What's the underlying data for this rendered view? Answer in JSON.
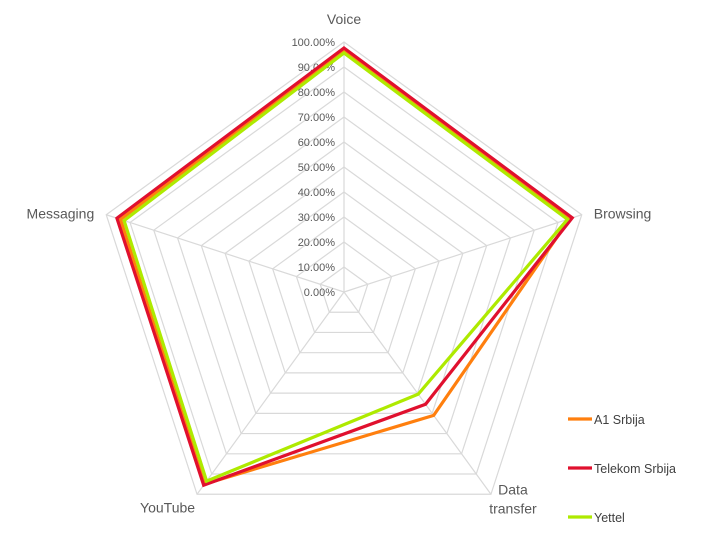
{
  "chart_data": {
    "type": "radar",
    "categories": [
      "Voice",
      "Browsing",
      "Data transfer",
      "YouTube",
      "Messaging"
    ],
    "category_label_lines": [
      [
        "Voice"
      ],
      [
        "Browsing"
      ],
      [
        "Data",
        "transfer"
      ],
      [
        "YouTube"
      ],
      [
        "Messaging"
      ]
    ],
    "rlim": [
      0,
      1
    ],
    "tick_values": [
      0,
      0.1,
      0.2,
      0.3,
      0.4,
      0.5,
      0.6,
      0.7,
      0.8,
      0.9,
      1.0
    ],
    "tick_labels": [
      "0.00%",
      "10.00%",
      "20.00%",
      "30.00%",
      "40.00%",
      "50.00%",
      "60.00%",
      "70.00%",
      "80.00%",
      "90.00%",
      "100.00%"
    ],
    "grid": true,
    "legend_position": "bottom-right",
    "series": [
      {
        "name": "A1 Srbija",
        "color": "#FF7F0E",
        "values": [
          0.97,
          0.95,
          0.61,
          0.95,
          0.94
        ]
      },
      {
        "name": "Telekom Srbija",
        "color": "#E0102E",
        "values": [
          0.976,
          0.96,
          0.555,
          0.955,
          0.955
        ]
      },
      {
        "name": "Yettel",
        "color": "#AEEA00",
        "values": [
          0.956,
          0.94,
          0.505,
          0.935,
          0.925
        ]
      }
    ]
  }
}
